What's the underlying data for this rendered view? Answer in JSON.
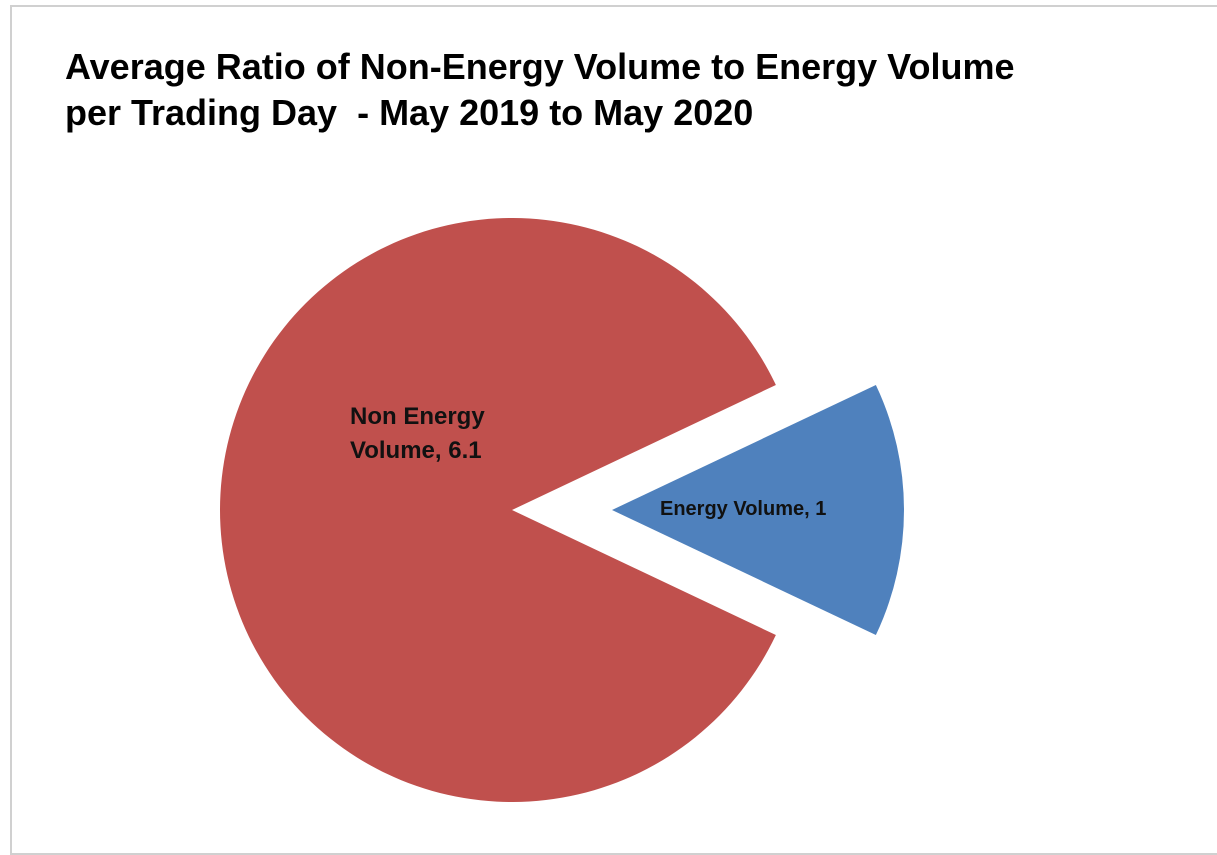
{
  "chart_data": {
    "type": "pie",
    "title": "Average Ratio of Non-Energy Volume to Energy Volume per Trading Day  - May 2019 to May 2020",
    "values": [
      6.1,
      1
    ],
    "value_labels": [
      "Non Energy Volume, 6.1",
      "Energy Volume, 1"
    ],
    "colors": [
      "#c0504d",
      "#4f81bd"
    ]
  }
}
